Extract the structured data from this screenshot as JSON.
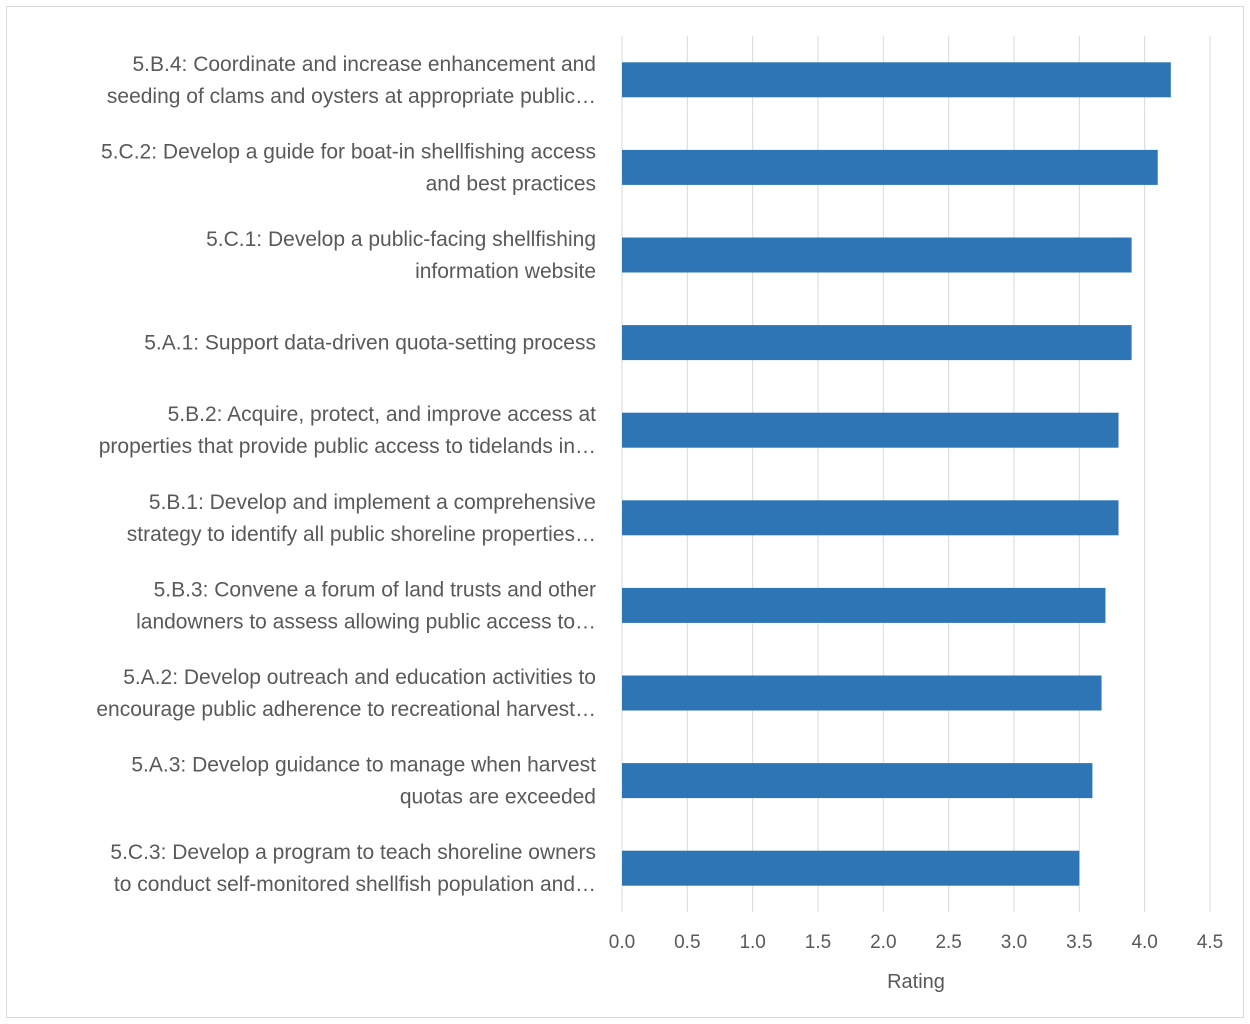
{
  "chart_data": {
    "type": "bar",
    "orientation": "horizontal",
    "categories": [
      [
        "5.B.4: Coordinate and increase enhancement and",
        "seeding of clams and oysters at appropriate public…"
      ],
      [
        "5.C.2: Develop a guide for boat-in shellfishing access",
        "and best practices"
      ],
      [
        "5.C.1: Develop a public-facing shellfishing",
        "information website"
      ],
      [
        "5.A.1: Support data-driven quota-setting process"
      ],
      [
        "5.B.2: Acquire, protect, and improve access at",
        "properties that provide public access to tidelands in…"
      ],
      [
        "5.B.1: Develop and implement a comprehensive",
        "strategy to identify all public shoreline properties…"
      ],
      [
        "5.B.3: Convene a forum of land trusts and other",
        "landowners to assess allowing public access to…"
      ],
      [
        "5.A.2: Develop outreach and education activities to",
        "encourage public adherence to recreational harvest…"
      ],
      [
        "5.A.3: Develop guidance to manage when harvest",
        "quotas are exceeded"
      ],
      [
        "5.C.3: Develop a program to teach shoreline owners",
        "to conduct self-monitored shellfish population and…"
      ]
    ],
    "values": [
      4.2,
      4.1,
      3.9,
      3.9,
      3.8,
      3.8,
      3.7,
      3.67,
      3.6,
      3.5
    ],
    "xlabel": "Rating",
    "xlim": [
      0,
      4.5
    ],
    "xticks": [
      "0.0",
      "0.5",
      "1.0",
      "1.5",
      "2.0",
      "2.5",
      "3.0",
      "3.5",
      "4.0",
      "4.5"
    ],
    "grid": "vertical",
    "bar_color": "#2e75b6",
    "grid_color": "#d9d9d9",
    "text_color": "#595959"
  }
}
